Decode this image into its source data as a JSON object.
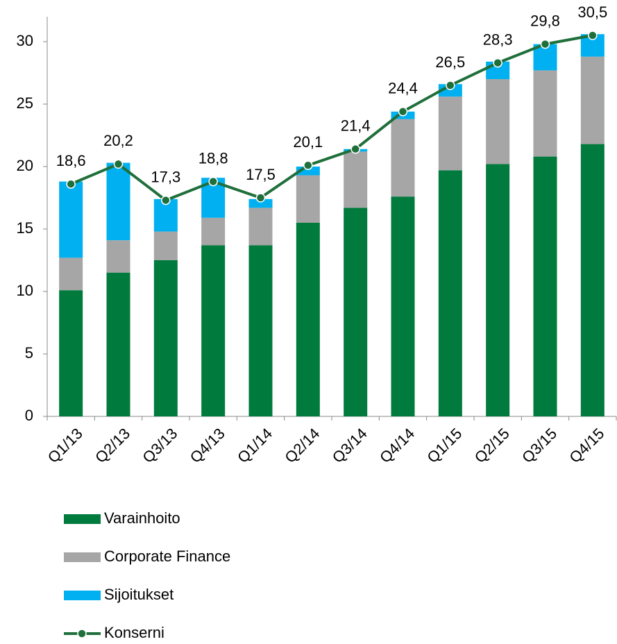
{
  "chart_data": {
    "type": "bar",
    "stacked": true,
    "categories": [
      "Q1/13",
      "Q2/13",
      "Q3/13",
      "Q4/13",
      "Q1/14",
      "Q2/14",
      "Q3/14",
      "Q4/14",
      "Q1/15",
      "Q2/15",
      "Q3/15",
      "Q4/15"
    ],
    "series": [
      {
        "name": "Varainhoito",
        "color": "#007a3d",
        "values": [
          10.1,
          11.5,
          12.5,
          13.7,
          13.7,
          15.5,
          16.7,
          17.6,
          19.7,
          20.2,
          20.8,
          21.8
        ]
      },
      {
        "name": "Corporate Finance",
        "color": "#a6a6a6",
        "values": [
          2.6,
          2.6,
          2.3,
          2.2,
          3.0,
          3.8,
          4.5,
          6.2,
          5.9,
          6.8,
          6.9,
          7.0
        ]
      },
      {
        "name": "Sijoitukset",
        "color": "#00b0f0",
        "values": [
          6.1,
          6.2,
          2.6,
          3.2,
          0.7,
          0.7,
          0.2,
          0.6,
          1.0,
          1.4,
          2.1,
          1.8
        ]
      },
      {
        "name": "Konserni",
        "type": "line",
        "color": "#1f6f3b",
        "values": [
          18.6,
          20.2,
          17.3,
          18.8,
          17.5,
          20.1,
          21.4,
          24.4,
          26.5,
          28.3,
          29.8,
          30.5
        ],
        "value_labels": [
          "18,6",
          "20,2",
          "17,3",
          "18,8",
          "17,5",
          "20,1",
          "21,4",
          "24,4",
          "26,5",
          "28,3",
          "29,8",
          "30,5"
        ]
      }
    ],
    "ylim": [
      0,
      32
    ],
    "yticks": [
      0,
      5,
      10,
      15,
      20,
      25,
      30
    ],
    "grid": false,
    "legend": "bottom"
  }
}
